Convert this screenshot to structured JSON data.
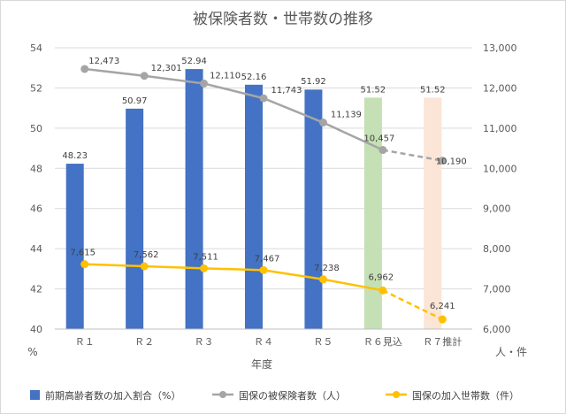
{
  "chart_data": {
    "type": "bar+line",
    "title": "被保険者数・世帯数の推移",
    "xlabel": "年度",
    "categories": [
      "Ｒ１",
      "Ｒ２",
      "Ｒ３",
      "Ｒ４",
      "Ｒ５",
      "Ｒ６見込",
      "Ｒ７推計"
    ],
    "y_left": {
      "unit": "%",
      "ylim": [
        40,
        54
      ],
      "ticks": [
        40,
        42,
        44,
        46,
        48,
        50,
        52,
        54
      ]
    },
    "y_right": {
      "unit": "人・件",
      "ylim": [
        6000,
        13000
      ],
      "ticks": [
        "6,000",
        "7,000",
        "8,000",
        "9,000",
        "10,000",
        "11,000",
        "12,000",
        "13,000"
      ]
    },
    "bar_series": {
      "name": "前期高齢者数の加入割合（%）",
      "values": [
        48.23,
        50.97,
        52.94,
        52.16,
        51.92,
        51.52,
        51.52
      ],
      "labels": [
        "48.23",
        "50.97",
        "52.94",
        "52.16",
        "51.92",
        "51.52",
        "51.52"
      ],
      "colors": [
        "#4472c4",
        "#4472c4",
        "#4472c4",
        "#4472c4",
        "#4472c4",
        "#c5e0b4",
        "#fbe5d6"
      ]
    },
    "line_series": [
      {
        "name": "国保の被保険者数（人）",
        "color": "#a5a5a5",
        "values": [
          12473,
          12301,
          12110,
          11743,
          11139,
          10457,
          10190
        ],
        "labels": [
          "12,473",
          "12,301",
          "12,110",
          "11,743",
          "11,139",
          "10,457",
          "10,190"
        ],
        "dashed_from_index": 5
      },
      {
        "name": "国保の加入世帯数（件）",
        "color": "#ffc000",
        "values": [
          7615,
          7562,
          7511,
          7467,
          7238,
          6962,
          6241
        ],
        "labels": [
          "7,615",
          "7,562",
          "7,511",
          "7,467",
          "7,238",
          "6,962",
          "6,241"
        ],
        "dashed_from_index": 5
      }
    ],
    "grid": true,
    "legend_position": "bottom"
  }
}
